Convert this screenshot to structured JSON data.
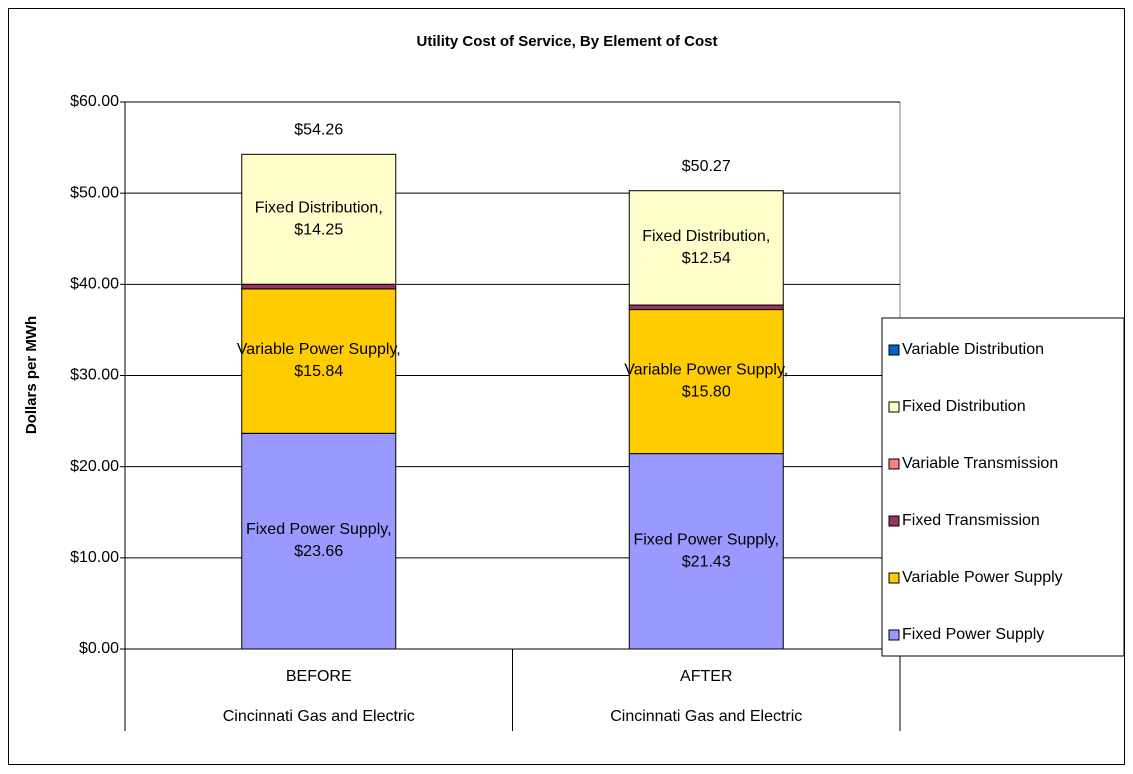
{
  "chart_data": {
    "type": "stacked_bar",
    "title": "Utility Cost of Service, By Element of Cost",
    "y_label": "Dollars per MWh",
    "categories": [
      "BEFORE",
      "AFTER"
    ],
    "groups": [
      "Cincinnati Gas and Electric",
      "Cincinnati Gas and Electric"
    ],
    "series": [
      {
        "name": "Fixed Power Supply",
        "color": "#9999ff",
        "values": [
          23.66,
          21.43
        ],
        "value_labels": [
          "Fixed Power Supply, $23.66",
          "Fixed Power Supply, $21.43"
        ]
      },
      {
        "name": "Variable Power Supply",
        "color": "#ffcc00",
        "values": [
          15.84,
          15.8
        ],
        "value_labels": [
          "Variable Power Supply, $15.84",
          "Variable Power Supply, $15.80"
        ]
      },
      {
        "name": "Fixed Transmission",
        "color": "#993366",
        "values": [
          0.51,
          0.5
        ]
      },
      {
        "name": "Variable Transmission",
        "color": "#ff8080",
        "values": [
          0,
          0
        ]
      },
      {
        "name": "Fixed Distribution",
        "color": "#ffffcc",
        "values": [
          14.25,
          12.54
        ],
        "value_labels": [
          "Fixed Distribution, $14.25",
          "Fixed Distribution, $12.54"
        ]
      },
      {
        "name": "Variable Distribution",
        "color": "#0066cc",
        "values": [
          0,
          0
        ]
      }
    ],
    "totals": [
      54.26,
      50.27
    ],
    "total_labels": [
      "$54.26",
      "$50.27"
    ],
    "ylim": [
      0,
      60
    ],
    "yticks": [
      {
        "value": 0,
        "label": "$0.00"
      },
      {
        "value": 10,
        "label": "$10.00"
      },
      {
        "value": 20,
        "label": "$20.00"
      },
      {
        "value": 30,
        "label": "$30.00"
      },
      {
        "value": 40,
        "label": "$40.00"
      },
      {
        "value": 50,
        "label": "$50.00"
      },
      {
        "value": 60,
        "label": "$60.00"
      }
    ],
    "grid": true,
    "legend": "right"
  }
}
